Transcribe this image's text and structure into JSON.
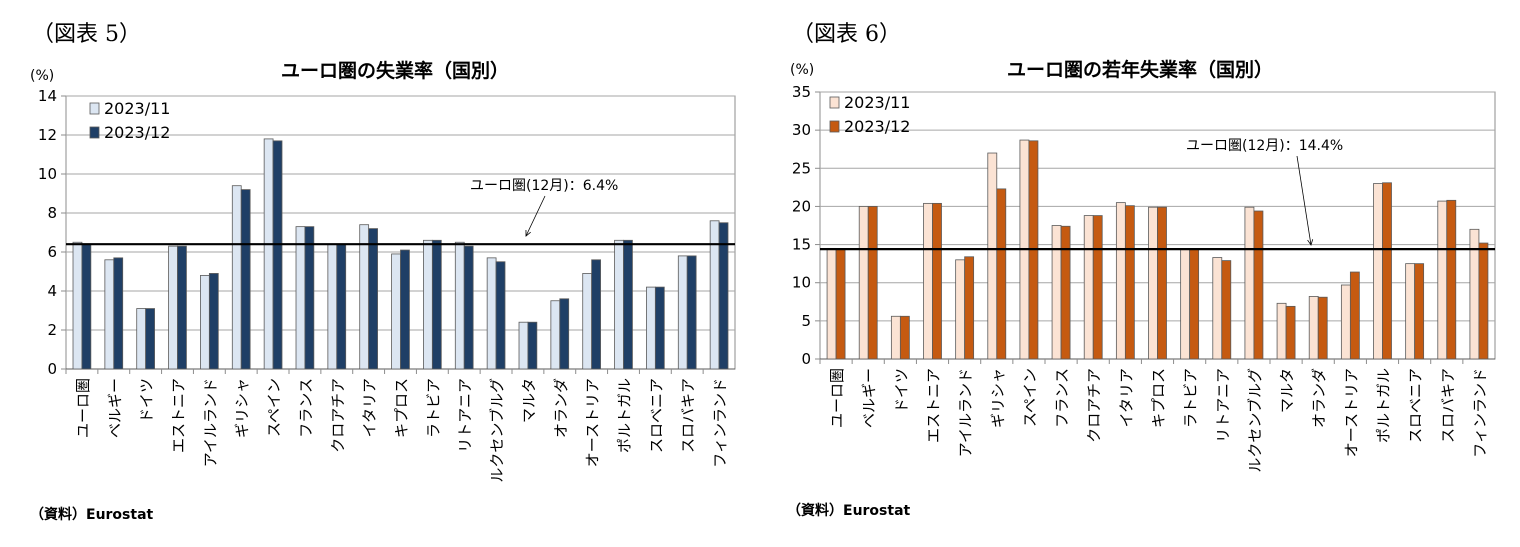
{
  "figures": [
    {
      "label": "（図表 5）",
      "source": "（資料）Eurostat",
      "chart_data": {
        "type": "bar",
        "title": "ユーロ圏の失業率（国別）",
        "ylabel": "(%)",
        "xlabel": "",
        "ylim": [
          0,
          14
        ],
        "yticks": [
          0,
          2,
          4,
          6,
          8,
          10,
          12,
          14
        ],
        "grid": true,
        "legend_position": "top-left",
        "categories": [
          "ユーロ圏",
          "ベルギー",
          "ドイツ",
          "エストニア",
          "アイルランド",
          "ギリシャ",
          "スペイン",
          "フランス",
          "クロアチア",
          "イタリア",
          "キプロス",
          "ラトビア",
          "リトアニア",
          "ルクセンブルグ",
          "マルタ",
          "オランダ",
          "オーストリア",
          "ポルトガル",
          "スロベニア",
          "スロバキア",
          "フィンランド"
        ],
        "series": [
          {
            "name": "2023/11",
            "color": "#dce6f2",
            "values": [
              6.5,
              5.6,
              3.1,
              6.3,
              4.8,
              9.4,
              11.8,
              7.3,
              6.4,
              7.4,
              5.9,
              6.6,
              6.5,
              5.7,
              2.4,
              3.5,
              4.9,
              6.6,
              4.2,
              5.8,
              7.6
            ]
          },
          {
            "name": "2023/12",
            "color": "#1f3f66",
            "values": [
              6.4,
              5.7,
              3.1,
              6.3,
              4.9,
              9.2,
              11.7,
              7.3,
              6.4,
              7.2,
              6.1,
              6.6,
              6.3,
              5.5,
              2.4,
              3.6,
              5.6,
              6.6,
              4.2,
              5.8,
              7.5
            ]
          }
        ],
        "reference_line": {
          "value": 6.4,
          "label": "ユーロ圏(12月)：6.4%"
        }
      }
    },
    {
      "label": "（図表 6）",
      "source": "（資料）Eurostat",
      "chart_data": {
        "type": "bar",
        "title": "ユーロ圏の若年失業率（国別）",
        "ylabel": "(%)",
        "xlabel": "",
        "ylim": [
          0,
          35
        ],
        "yticks": [
          0,
          5,
          10,
          15,
          20,
          25,
          30,
          35
        ],
        "grid": true,
        "legend_position": "top-left",
        "categories": [
          "ユーロ圏",
          "ベルギー",
          "ドイツ",
          "エストニア",
          "アイルランド",
          "ギリシャ",
          "スペイン",
          "フランス",
          "クロアチア",
          "イタリア",
          "キプロス",
          "ラトビア",
          "リトアニア",
          "ルクセンブルグ",
          "マルタ",
          "オランダ",
          "オーストリア",
          "ポルトガル",
          "スロベニア",
          "スロバキア",
          "フィンランド"
        ],
        "series": [
          {
            "name": "2023/11",
            "color": "#fbe3d4",
            "values": [
              14.5,
              20.0,
              5.6,
              20.4,
              13.0,
              27.0,
              28.7,
              17.5,
              18.8,
              20.5,
              19.9,
              14.4,
              13.3,
              19.9,
              7.3,
              8.2,
              9.7,
              23.0,
              12.5,
              20.7,
              17.0
            ]
          },
          {
            "name": "2023/12",
            "color": "#c55a11",
            "values": [
              14.4,
              20.0,
              5.6,
              20.4,
              13.4,
              22.3,
              28.6,
              17.4,
              18.8,
              20.1,
              19.9,
              14.4,
              12.9,
              19.4,
              6.9,
              8.1,
              11.4,
              23.1,
              12.5,
              20.8,
              15.2
            ]
          }
        ],
        "reference_line": {
          "value": 14.4,
          "label": "ユーロ圏(12月)：14.4%"
        }
      }
    }
  ]
}
